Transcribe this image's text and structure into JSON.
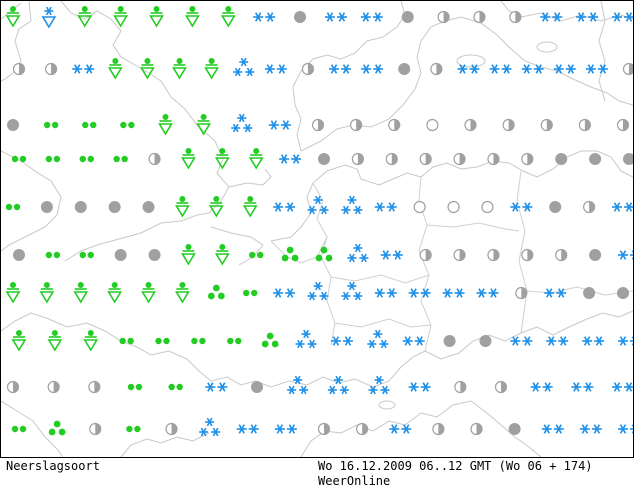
{
  "footer": {
    "title": "Neerslagsoort",
    "valid_time": "Wo 16.12.2009 06..12 GMT (Wo 06 + 174)",
    "brand": "WeerOnline"
  },
  "legend_colors": {
    "snow": "#1e90e8",
    "rain": "#22cc22",
    "dry": "#a0a0a0",
    "coast": "#c8c8c8"
  },
  "symbols": [
    {
      "row": 1,
      "items": [
        "rain-shower",
        "snow-shower",
        "rain-shower",
        "rain-shower",
        "rain-shower",
        "rain-shower",
        "rain-shower",
        "snow",
        "overcast",
        "snow",
        "snow",
        "overcast",
        "half-cloud",
        "half-cloud",
        "half-cloud",
        "snow",
        "snow",
        "snow"
      ]
    },
    {
      "row": 2,
      "items": [
        "half-cloud",
        "half-cloud",
        "snow",
        "rain-shower",
        "rain-shower",
        "rain-shower",
        "rain-shower",
        "snow-heavy",
        "snow",
        "half-cloud",
        "snow",
        "snow",
        "overcast",
        "half-cloud",
        "snow",
        "snow",
        "snow",
        "snow",
        "snow",
        "half-cloud"
      ]
    },
    {
      "row": 3,
      "items": [
        "overcast",
        "rain",
        "rain",
        "rain",
        "rain-shower",
        "rain-shower",
        "snow-heavy",
        "snow",
        "half-cloud",
        "half-cloud",
        "half-cloud",
        "clear",
        "half-cloud",
        "half-cloud",
        "half-cloud",
        "half-cloud",
        "half-cloud"
      ]
    },
    {
      "row": 4,
      "items": [
        "rain",
        "rain",
        "rain",
        "rain",
        "half-cloud",
        "rain-shower",
        "rain-shower",
        "rain-shower",
        "snow",
        "overcast",
        "half-cloud",
        "half-cloud",
        "half-cloud",
        "half-cloud",
        "half-cloud",
        "half-cloud",
        "overcast",
        "overcast",
        "overcast"
      ]
    },
    {
      "row": 5,
      "items": [
        "rain",
        "overcast",
        "overcast",
        "overcast",
        "overcast",
        "rain-shower",
        "rain-shower",
        "rain-shower",
        "snow",
        "snow-heavy",
        "snow-heavy",
        "snow",
        "clear",
        "clear",
        "clear",
        "snow",
        "overcast",
        "half-cloud",
        "snow"
      ]
    },
    {
      "row": 6,
      "items": [
        "overcast",
        "rain",
        "rain",
        "overcast",
        "overcast",
        "rain-shower",
        "rain-shower",
        "rain",
        "rain-heavy",
        "rain-heavy",
        "snow-heavy",
        "snow",
        "half-cloud",
        "half-cloud",
        "half-cloud",
        "half-cloud",
        "half-cloud",
        "overcast",
        "snow"
      ]
    },
    {
      "row": 7,
      "items": [
        "rain-shower",
        "rain-shower",
        "rain-shower",
        "rain-shower",
        "rain-shower",
        "rain-shower",
        "rain-heavy",
        "rain",
        "snow",
        "snow-heavy",
        "snow-heavy",
        "snow",
        "snow",
        "snow",
        "snow",
        "half-cloud",
        "snow",
        "overcast",
        "overcast"
      ]
    },
    {
      "row": 8,
      "items": [
        "rain-shower",
        "rain-shower",
        "rain-shower",
        "rain",
        "rain",
        "rain",
        "rain",
        "rain-heavy",
        "snow-heavy",
        "snow",
        "snow-heavy",
        "snow",
        "overcast",
        "overcast",
        "snow",
        "snow",
        "snow",
        "snow"
      ]
    },
    {
      "row": 9,
      "items": [
        "half-cloud",
        "half-cloud",
        "half-cloud",
        "rain",
        "rain",
        "snow",
        "overcast",
        "snow-heavy",
        "snow-heavy",
        "snow-heavy",
        "snow",
        "half-cloud",
        "half-cloud",
        "snow",
        "snow",
        "snow"
      ]
    },
    {
      "row": 10,
      "items": [
        "rain",
        "rain-heavy",
        "half-cloud",
        "rain",
        "half-cloud",
        "snow-heavy",
        "snow",
        "snow",
        "half-cloud",
        "half-cloud",
        "snow",
        "half-cloud",
        "half-cloud",
        "overcast",
        "snow",
        "snow",
        "snow"
      ]
    }
  ]
}
